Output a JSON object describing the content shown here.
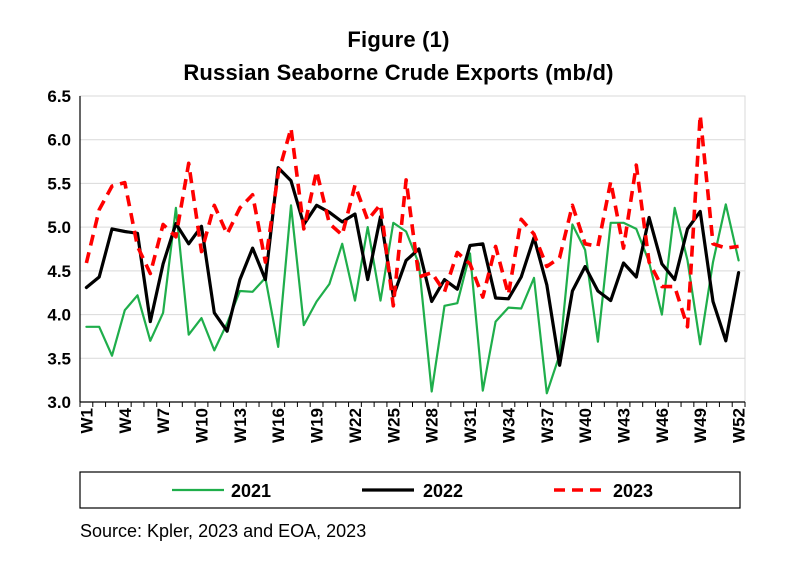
{
  "chart_data": {
    "type": "line",
    "title": "Figure (1)",
    "subtitle": "Russian Seaborne Crude Exports (mb/d)",
    "xlabel": "",
    "ylabel": "",
    "ylim": [
      3.0,
      6.5
    ],
    "yticks": [
      "3.0",
      "3.5",
      "4.0",
      "4.5",
      "5.0",
      "5.5",
      "6.0",
      "6.5"
    ],
    "x": [
      "W1",
      "W2",
      "W3",
      "W4",
      "W5",
      "W6",
      "W7",
      "W8",
      "W9",
      "W10",
      "W11",
      "W12",
      "W13",
      "W14",
      "W15",
      "W16",
      "W17",
      "W18",
      "W19",
      "W20",
      "W21",
      "W22",
      "W23",
      "W24",
      "W25",
      "W26",
      "W27",
      "W28",
      "W29",
      "W30",
      "W31",
      "W32",
      "W33",
      "W34",
      "W35",
      "W36",
      "W37",
      "W38",
      "W39",
      "W40",
      "W41",
      "W42",
      "W43",
      "W44",
      "W45",
      "W46",
      "W47",
      "W48",
      "W49",
      "W50",
      "W51",
      "W52"
    ],
    "xtick_labels": [
      "W1",
      "W4",
      "W7",
      "W10",
      "W13",
      "W16",
      "W19",
      "W22",
      "W25",
      "W28",
      "W31",
      "W34",
      "W37",
      "W40",
      "W43",
      "W46",
      "W49",
      "W52"
    ],
    "grid": true,
    "legend_position": "bottom",
    "series": [
      {
        "name": "2021",
        "color": "#1fae4b",
        "style": "solid",
        "values": [
          3.86,
          3.86,
          3.53,
          4.05,
          4.22,
          3.7,
          4.02,
          5.22,
          3.77,
          3.96,
          3.59,
          3.9,
          4.27,
          4.26,
          4.42,
          3.63,
          5.25,
          3.88,
          4.15,
          4.35,
          4.81,
          4.16,
          5.0,
          4.16,
          5.05,
          4.95,
          4.58,
          3.12,
          4.1,
          4.13,
          4.7,
          3.13,
          3.92,
          4.08,
          4.07,
          4.42,
          3.1,
          3.54,
          5.03,
          4.74,
          3.69,
          5.05,
          5.05,
          4.98,
          4.6,
          4.0,
          5.22,
          4.62,
          3.66,
          4.6,
          5.26,
          4.62
        ]
      },
      {
        "name": "2022",
        "color": "#000000",
        "style": "solid",
        "values": [
          4.31,
          4.43,
          4.98,
          4.95,
          4.93,
          3.92,
          4.58,
          5.04,
          4.81,
          5.01,
          4.02,
          3.81,
          4.4,
          4.76,
          4.4,
          5.68,
          5.53,
          5.03,
          5.25,
          5.17,
          5.06,
          5.15,
          4.4,
          5.12,
          4.21,
          4.62,
          4.75,
          4.15,
          4.4,
          4.29,
          4.79,
          4.81,
          4.19,
          4.18,
          4.43,
          4.88,
          4.34,
          3.42,
          4.27,
          4.55,
          4.27,
          4.16,
          4.59,
          4.43,
          5.11,
          4.58,
          4.4,
          4.98,
          5.18,
          4.15,
          3.7,
          4.48
        ]
      },
      {
        "name": "2023",
        "color": "#ff0000",
        "style": "dashed",
        "values": [
          4.59,
          5.2,
          5.47,
          5.51,
          4.78,
          4.47,
          5.03,
          4.89,
          5.73,
          4.72,
          5.25,
          4.92,
          5.22,
          5.37,
          4.6,
          5.61,
          6.13,
          4.98,
          5.64,
          5.04,
          4.91,
          5.48,
          5.08,
          5.26,
          4.1,
          5.54,
          4.43,
          4.48,
          4.26,
          4.71,
          4.58,
          4.2,
          4.78,
          4.23,
          5.09,
          4.92,
          4.55,
          4.65,
          5.25,
          4.81,
          4.78,
          5.52,
          4.76,
          5.71,
          4.6,
          4.32,
          4.32,
          3.86,
          6.28,
          4.81,
          4.76,
          4.78
        ]
      }
    ]
  },
  "source_text": "Source: Kpler, 2023 and EOA, 2023"
}
